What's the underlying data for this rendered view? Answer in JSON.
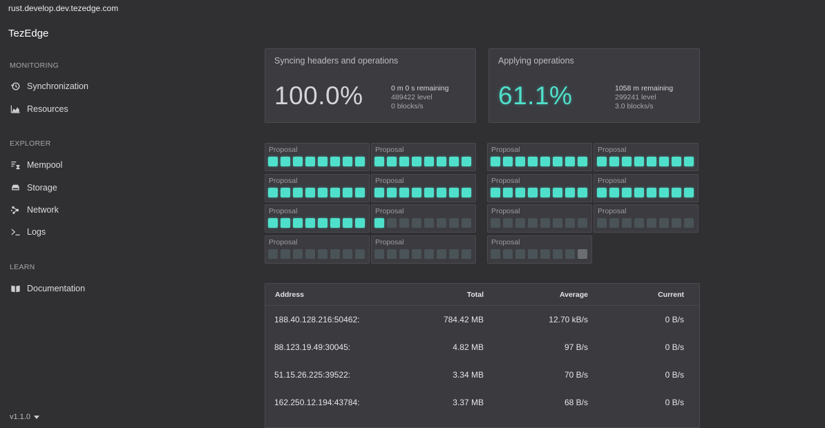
{
  "browser": {
    "url": "rust.develop.dev.tezedge.com"
  },
  "app": {
    "title": "TezEdge",
    "version": "v1.1.0"
  },
  "sidebar": {
    "sections": [
      {
        "title": "MONITORING",
        "items": [
          {
            "label": "Synchronization",
            "icon": "history-icon"
          },
          {
            "label": "Resources",
            "icon": "chart-area-icon"
          }
        ]
      },
      {
        "title": "EXPLORER",
        "items": [
          {
            "label": "Mempool",
            "icon": "mempool-icon"
          },
          {
            "label": "Storage",
            "icon": "storage-icon"
          },
          {
            "label": "Network",
            "icon": "network-icon"
          },
          {
            "label": "Logs",
            "icon": "terminal-icon"
          }
        ]
      },
      {
        "title": "LEARN",
        "items": [
          {
            "label": "Documentation",
            "icon": "book-icon"
          }
        ]
      }
    ]
  },
  "sync": {
    "title": "Syncing headers and operations",
    "percent": "100.0%",
    "remaining": "0 m 0 s remaining",
    "level": "489422 level",
    "rate": "0 blocks/s"
  },
  "apply": {
    "title": "Applying operations",
    "percent": "61.1%",
    "remaining": "1058 m remaining",
    "level": "299241 level",
    "rate": "3.0 blocks/s"
  },
  "proposals": {
    "label": "Proposal",
    "left": [
      {
        "filled": 8
      },
      {
        "filled": 8
      },
      {
        "filled": 8
      },
      {
        "filled": 8
      },
      {
        "filled": 8
      },
      {
        "filled": 1
      },
      {
        "filled": 0
      },
      {
        "filled": 0
      }
    ],
    "right": [
      {
        "filled": 8
      },
      {
        "filled": 8
      },
      {
        "filled": 8
      },
      {
        "filled": 8
      },
      {
        "filled": 0
      },
      {
        "filled": 0
      },
      {
        "filled": 0,
        "highlight_last": true
      }
    ]
  },
  "colors": {
    "accent": "#4fe0cb",
    "background": "#303033",
    "card": "#3b3b40"
  },
  "peers_table": {
    "headers": {
      "address": "Address",
      "total": "Total",
      "average": "Average",
      "current": "Current"
    },
    "rows": [
      {
        "address": "188.40.128.216:50462:",
        "total": "784.42 MB",
        "average": "12.70 kB/s",
        "current": "0 B/s"
      },
      {
        "address": "88.123.19.49:30045:",
        "total": "4.82 MB",
        "average": "97 B/s",
        "current": "0 B/s"
      },
      {
        "address": "51.15.26.225:39522:",
        "total": "3.34 MB",
        "average": "70 B/s",
        "current": "0 B/s"
      },
      {
        "address": "162.250.12.194:43784:",
        "total": "3.37 MB",
        "average": "68 B/s",
        "current": "0 B/s"
      }
    ]
  }
}
